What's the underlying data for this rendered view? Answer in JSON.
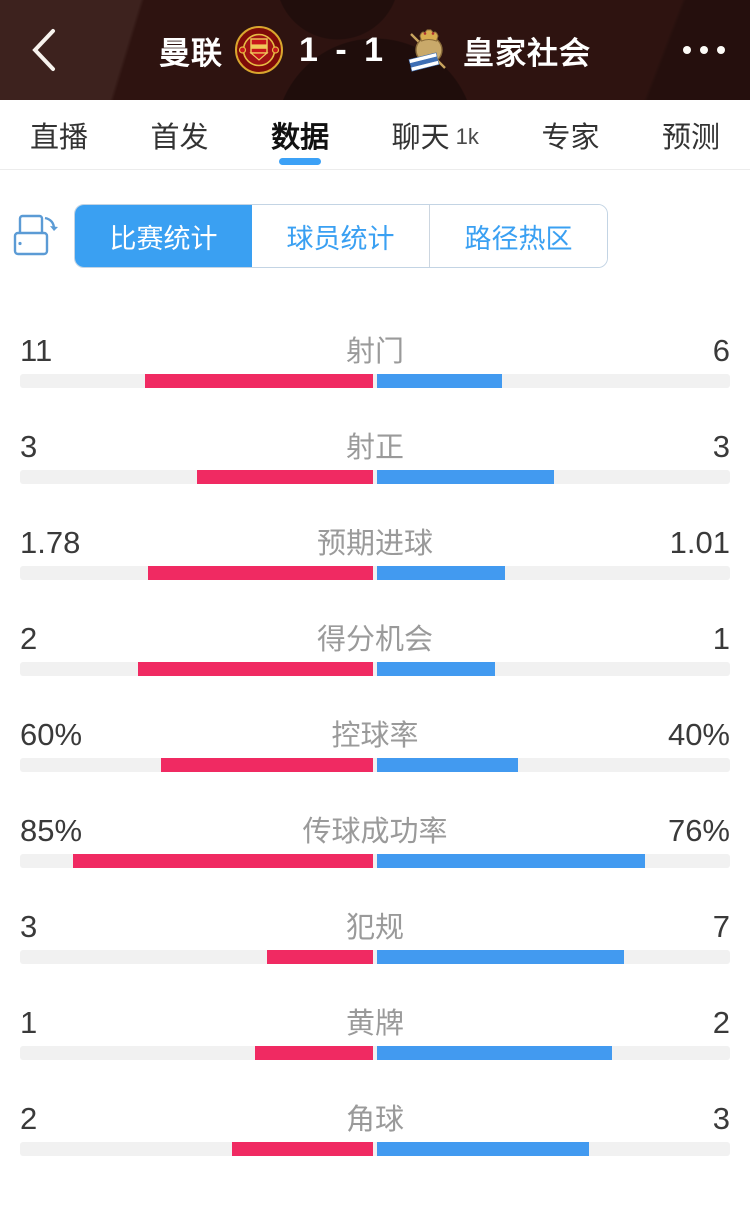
{
  "header": {
    "home_team": "曼联",
    "away_team": "皇家社会",
    "score": "1 - 1",
    "back_icon": "chevron-left",
    "more_icon": "ellipsis",
    "bg_color": "#2E1310"
  },
  "tabs": [
    {
      "label": "直播",
      "active": false
    },
    {
      "label": "首发",
      "active": false
    },
    {
      "label": "数据",
      "active": true
    },
    {
      "label": "聊天",
      "badge": "1k",
      "active": false
    },
    {
      "label": "专家",
      "active": false
    },
    {
      "label": "预测",
      "active": false
    }
  ],
  "sub_controls": {
    "rotate_icon": "rotate-screen",
    "segments": [
      {
        "label": "比赛统计",
        "active": true
      },
      {
        "label": "球员统计",
        "active": false
      },
      {
        "label": "路径热区",
        "active": false
      }
    ]
  },
  "colors": {
    "home_bar": "#F02A62",
    "away_bar": "#429AF0",
    "track": "#f1f1f1",
    "accent_blue": "#3AA0F2",
    "tab_underline": "#3CA1F6"
  },
  "chart_data": {
    "type": "bar",
    "title": "比赛统计",
    "home_team": "曼联",
    "away_team": "皇家社会",
    "layout": "mirrored horizontal bars from center, home left pink, away right blue",
    "rows": [
      {
        "label": "射门",
        "home": "11",
        "away": "6",
        "home_value": 11,
        "away_value": 6,
        "normalize": "sum"
      },
      {
        "label": "射正",
        "home": "3",
        "away": "3",
        "home_value": 3,
        "away_value": 3,
        "normalize": "sum"
      },
      {
        "label": "预期进球",
        "home": "1.78",
        "away": "1.01",
        "home_value": 1.78,
        "away_value": 1.01,
        "normalize": "sum"
      },
      {
        "label": "得分机会",
        "home": "2",
        "away": "1",
        "home_value": 2,
        "away_value": 1,
        "normalize": "sum"
      },
      {
        "label": "控球率",
        "home": "60%",
        "away": "40%",
        "home_value": 60,
        "away_value": 40,
        "normalize": "percent"
      },
      {
        "label": "传球成功率",
        "home": "85%",
        "away": "76%",
        "home_value": 85,
        "away_value": 76,
        "normalize": "percent"
      },
      {
        "label": "犯规",
        "home": "3",
        "away": "7",
        "home_value": 3,
        "away_value": 7,
        "normalize": "sum"
      },
      {
        "label": "黄牌",
        "home": "1",
        "away": "2",
        "home_value": 1,
        "away_value": 2,
        "normalize": "sum"
      },
      {
        "label": "角球",
        "home": "2",
        "away": "3",
        "home_value": 2,
        "away_value": 3,
        "normalize": "sum"
      }
    ]
  }
}
